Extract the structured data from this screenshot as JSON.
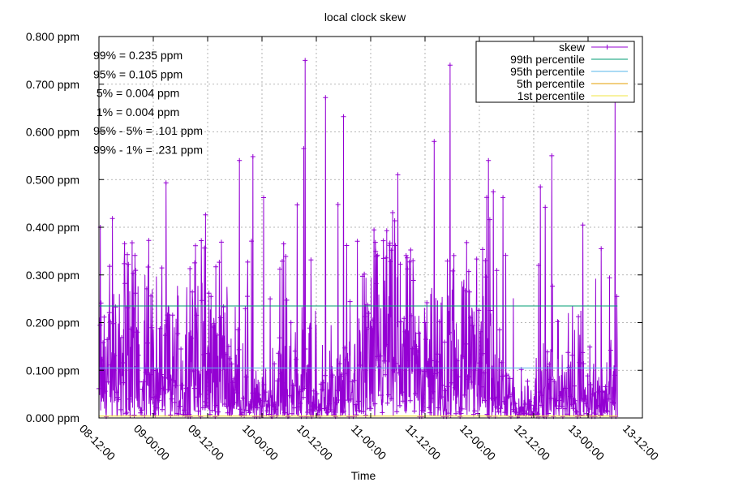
{
  "chart_data": {
    "type": "line",
    "title": "local clock skew",
    "xlabel": "Time",
    "ylabel": "",
    "ylim": [
      0.0,
      0.8
    ],
    "y_unit": "ppm",
    "y_ticks": [
      "0.000 ppm",
      "0.100 ppm",
      "0.200 ppm",
      "0.300 ppm",
      "0.400 ppm",
      "0.500 ppm",
      "0.600 ppm",
      "0.700 ppm",
      "0.800 ppm"
    ],
    "y_tick_values": [
      0.0,
      0.1,
      0.2,
      0.3,
      0.4,
      0.5,
      0.6,
      0.7,
      0.8
    ],
    "x_ticks": [
      "08-12:00",
      "09-00:00",
      "09-12:00",
      "10-00:00",
      "10-12:00",
      "11-00:00",
      "11-12:00",
      "12-00:00",
      "12-12:00",
      "13-00:00",
      "13-12:00"
    ],
    "x_range_hours": [
      0,
      120
    ],
    "data_span_hours": [
      0,
      114.5
    ],
    "grid": true,
    "legend_position": "top-right",
    "stats": [
      "99% = 0.235 ppm",
      "95% = 0.105 ppm",
      " 5% = 0.004 ppm",
      " 1% = 0.004 ppm",
      "95% - 5% = .101 ppm",
      "99% - 1% = .231 ppm"
    ],
    "series": [
      {
        "name": "skew",
        "color": "#9400d3",
        "style": "linespoints",
        "note": "dense noisy trace, typical 0.0-0.35 ppm, spikes up to ~0.75 ppm"
      },
      {
        "name": "99th percentile",
        "color": "#009e73",
        "value": 0.235
      },
      {
        "name": "95th percentile",
        "color": "#56b4e9",
        "value": 0.105
      },
      {
        "name": "5th percentile",
        "color": "#e69f00",
        "value": 0.004
      },
      {
        "name": "1st percentile",
        "color": "#f0e442",
        "value": 0.004
      }
    ],
    "notable_peaks": [
      {
        "x_hours": 45.5,
        "y": 0.75
      },
      {
        "x_hours": 50.0,
        "y": 0.672
      },
      {
        "x_hours": 54.0,
        "y": 0.632
      },
      {
        "x_hours": 77.5,
        "y": 0.74
      },
      {
        "x_hours": 74.0,
        "y": 0.58
      },
      {
        "x_hours": 45.2,
        "y": 0.565
      },
      {
        "x_hours": 34.0,
        "y": 0.548
      },
      {
        "x_hours": 31.0,
        "y": 0.54
      },
      {
        "x_hours": 114.0,
        "y": 0.685
      },
      {
        "x_hours": 100.0,
        "y": 0.55
      },
      {
        "x_hours": 66.0,
        "y": 0.51
      },
      {
        "x_hours": 86.0,
        "y": 0.54
      },
      {
        "x_hours": 0.3,
        "y": 0.4
      }
    ]
  }
}
